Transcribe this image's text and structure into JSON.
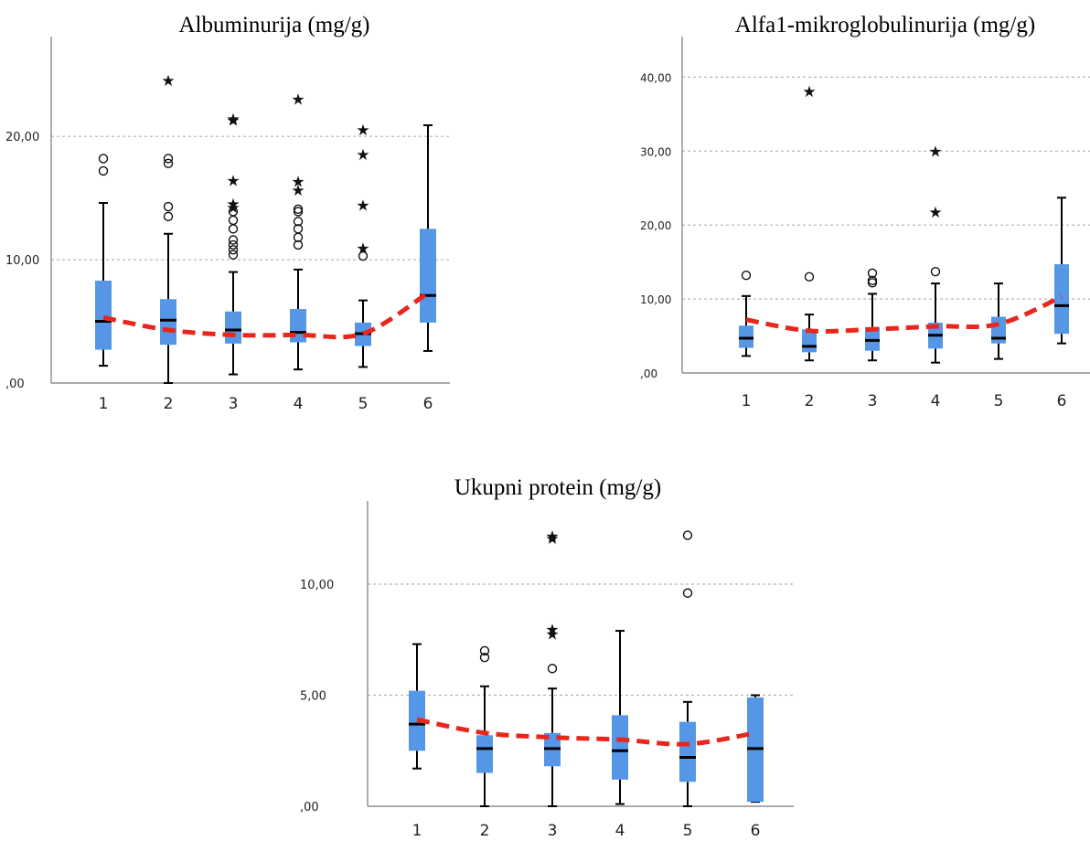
{
  "colors": {
    "box": "#5596e6",
    "median": "#000000",
    "trend": "#e8261c",
    "grid": "#b4b4b4",
    "axis": "#777777"
  },
  "chart_data": [
    {
      "type": "boxplot",
      "title": "Albuminurija (mg/g)",
      "xlabel": "",
      "ylabel": "",
      "categories": [
        "1",
        "2",
        "3",
        "4",
        "5",
        "6"
      ],
      "yticks": [
        0,
        10,
        20
      ],
      "ytick_labels": [
        ",00",
        "10,00",
        "20,00"
      ],
      "ylim": [
        0,
        27.5
      ],
      "grid": "horizontal dashed",
      "boxes": [
        {
          "category": "1",
          "whisker_low": 1.4,
          "q1": 2.7,
          "median": 5.0,
          "q3": 8.3,
          "whisker_high": 14.6,
          "outliers": [
            17.2,
            18.2
          ],
          "extremes": []
        },
        {
          "category": "2",
          "whisker_low": 0.0,
          "q1": 3.1,
          "median": 5.1,
          "q3": 6.8,
          "whisker_high": 12.1,
          "outliers": [
            13.5,
            14.3,
            17.8,
            18.2
          ],
          "extremes": [
            24.6
          ]
        },
        {
          "category": "3",
          "whisker_low": 0.7,
          "q1": 3.2,
          "median": 4.3,
          "q3": 5.8,
          "whisker_high": 9.0,
          "outliers": [
            10.4,
            10.8,
            11.2,
            11.6,
            12.5,
            13.2,
            13.9
          ],
          "extremes": [
            14.3,
            14.6,
            16.5,
            21.4,
            21.5
          ]
        },
        {
          "category": "4",
          "whisker_low": 1.1,
          "q1": 3.3,
          "median": 4.1,
          "q3": 6.0,
          "whisker_high": 9.2,
          "outliers": [
            11.2,
            11.8,
            12.5,
            13.1,
            13.9,
            14.1
          ],
          "extremes": [
            15.7,
            16.4,
            23.1
          ]
        },
        {
          "category": "5",
          "whisker_low": 1.3,
          "q1": 3.0,
          "median": 4.0,
          "q3": 4.9,
          "whisker_high": 6.7,
          "outliers": [
            10.3
          ],
          "extremes": [
            11.0,
            14.5,
            18.6,
            20.6
          ]
        },
        {
          "category": "6",
          "whisker_low": 2.6,
          "q1": 4.9,
          "median": 7.1,
          "q3": 12.5,
          "whisker_high": 20.9,
          "outliers": [],
          "extremes": []
        }
      ],
      "trend": {
        "x": [
          "1",
          "2",
          "3",
          "4",
          "5",
          "6"
        ],
        "y": [
          5.3,
          4.3,
          3.9,
          3.9,
          4.0,
          7.3
        ]
      }
    },
    {
      "type": "boxplot",
      "title": "Alfa1-mikroglobulinurija (mg/g)",
      "xlabel": "",
      "ylabel": "",
      "categories": [
        "1",
        "2",
        "3",
        "4",
        "5",
        "6"
      ],
      "yticks": [
        0,
        10,
        20,
        30,
        40
      ],
      "ytick_labels": [
        ",00",
        "10,00",
        "20,00",
        "30,00",
        "40,00"
      ],
      "ylim": [
        0,
        44.5
      ],
      "grid": "horizontal dashed",
      "boxes": [
        {
          "category": "1",
          "whisker_low": 2.3,
          "q1": 3.4,
          "median": 4.7,
          "q3": 6.4,
          "whisker_high": 10.4,
          "outliers": [
            13.2
          ],
          "extremes": []
        },
        {
          "category": "2",
          "whisker_low": 1.7,
          "q1": 2.8,
          "median": 3.6,
          "q3": 5.9,
          "whisker_high": 7.9,
          "outliers": [
            13.0
          ],
          "extremes": [
            38.2
          ]
        },
        {
          "category": "3",
          "whisker_low": 1.7,
          "q1": 3.0,
          "median": 4.4,
          "q3": 6.2,
          "whisker_high": 10.7,
          "outliers": [
            12.2,
            12.5,
            13.5
          ],
          "extremes": []
        },
        {
          "category": "4",
          "whisker_low": 1.4,
          "q1": 3.3,
          "median": 5.1,
          "q3": 6.8,
          "whisker_high": 12.1,
          "outliers": [
            13.7
          ],
          "extremes": [
            21.9,
            30.1
          ]
        },
        {
          "category": "5",
          "whisker_low": 1.9,
          "q1": 4.0,
          "median": 4.7,
          "q3": 7.6,
          "whisker_high": 12.1,
          "outliers": [],
          "extremes": []
        },
        {
          "category": "6",
          "whisker_low": 4.0,
          "q1": 5.3,
          "median": 9.1,
          "q3": 14.7,
          "whisker_high": 23.7,
          "outliers": [],
          "extremes": []
        }
      ],
      "trend": {
        "x": [
          "1",
          "2",
          "3",
          "4",
          "5",
          "6"
        ],
        "y": [
          7.2,
          5.7,
          5.9,
          6.3,
          6.6,
          10.3
        ]
      }
    },
    {
      "type": "boxplot",
      "title": "Ukupni protein (mg/g)",
      "xlabel": "",
      "ylabel": "",
      "categories": [
        "1",
        "2",
        "3",
        "4",
        "5",
        "6"
      ],
      "yticks": [
        0,
        5,
        10
      ],
      "ytick_labels": [
        ",00",
        "5,00",
        "10,00"
      ],
      "ylim": [
        0,
        13.5
      ],
      "grid": "horizontal dashed",
      "boxes": [
        {
          "category": "1",
          "whisker_low": 1.7,
          "q1": 2.5,
          "median": 3.7,
          "q3": 5.2,
          "whisker_high": 7.3,
          "outliers": [],
          "extremes": []
        },
        {
          "category": "2",
          "whisker_low": 0.0,
          "q1": 1.5,
          "median": 2.6,
          "q3": 3.2,
          "whisker_high": 5.4,
          "outliers": [
            6.7,
            7.0
          ],
          "extremes": []
        },
        {
          "category": "3",
          "whisker_low": 0.0,
          "q1": 1.8,
          "median": 2.6,
          "q3": 3.3,
          "whisker_high": 5.3,
          "outliers": [
            6.2
          ],
          "extremes": [
            7.8,
            8.0,
            12.1,
            12.2
          ]
        },
        {
          "category": "4",
          "whisker_low": 0.1,
          "q1": 1.2,
          "median": 2.5,
          "q3": 4.1,
          "whisker_high": 7.9,
          "outliers": [],
          "extremes": []
        },
        {
          "category": "5",
          "whisker_low": 0.0,
          "q1": 1.1,
          "median": 2.2,
          "q3": 3.8,
          "whisker_high": 4.7,
          "outliers": [
            9.6,
            12.2
          ],
          "extremes": []
        },
        {
          "category": "6",
          "whisker_low": 0.2,
          "q1": 0.2,
          "median": 2.6,
          "q3": 4.9,
          "whisker_high": 5.0,
          "outliers": [],
          "extremes": []
        }
      ],
      "trend": {
        "x": [
          "1",
          "2",
          "3",
          "4",
          "5",
          "6"
        ],
        "y": [
          3.9,
          3.3,
          3.1,
          3.0,
          2.8,
          3.3
        ]
      }
    }
  ]
}
